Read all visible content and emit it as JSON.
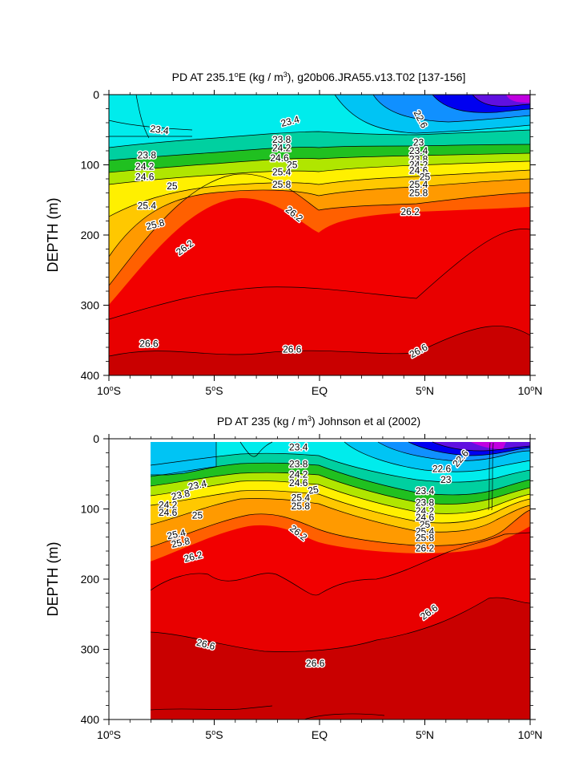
{
  "chart_data": [
    {
      "type": "heatmap",
      "title_main": "PD AT 235.1",
      "title_sup": "o",
      "title_rest": "E (kg / m",
      "title_unit_sup": "3",
      "title_tail": "), g20b06.JRA55.v13.T02 [137-156]",
      "ylabel": "DEPTH (m)",
      "xlim": [
        -10,
        10
      ],
      "ylim": [
        0,
        400
      ],
      "y_reversed": true,
      "x_ticks": [
        {
          "value": -10,
          "num": "10",
          "deg": "o",
          "hemi": "S"
        },
        {
          "value": -5,
          "num": "5",
          "deg": "o",
          "hemi": "S"
        },
        {
          "value": 0,
          "num": "EQ",
          "deg": "",
          "hemi": ""
        },
        {
          "value": 5,
          "num": "5",
          "deg": "o",
          "hemi": "N"
        },
        {
          "value": 10,
          "num": "10",
          "deg": "o",
          "hemi": "N"
        }
      ],
      "y_ticks": [
        "0",
        "100",
        "200",
        "300",
        "400"
      ],
      "y_tick_values": [
        0,
        100,
        200,
        300,
        400
      ],
      "data_start_lat": -10,
      "contour_levels": [
        22.6,
        23.0,
        23.4,
        23.8,
        24.2,
        24.6,
        25.0,
        25.4,
        25.8,
        26.2,
        26.6
      ],
      "contour_labels": [
        {
          "text": "23.4",
          "lat": -7.6,
          "depth": 50,
          "angle": 8
        },
        {
          "text": "23.4",
          "lat": -1.4,
          "depth": 38,
          "angle": -14
        },
        {
          "text": "22.6",
          "lat": 4.8,
          "depth": 35,
          "angle": 62
        },
        {
          "text": "23.8",
          "lat": -8.2,
          "depth": 86,
          "angle": 0
        },
        {
          "text": "23.8",
          "lat": -1.8,
          "depth": 64,
          "angle": 0
        },
        {
          "text": "24.2",
          "lat": -8.3,
          "depth": 102,
          "angle": 0
        },
        {
          "text": "24.2",
          "lat": -1.8,
          "depth": 76,
          "angle": 0
        },
        {
          "text": "24.6",
          "lat": -8.3,
          "depth": 117,
          "angle": 0
        },
        {
          "text": "24.6",
          "lat": -1.9,
          "depth": 90,
          "angle": 0
        },
        {
          "text": "25",
          "lat": -7.0,
          "depth": 130,
          "angle": 0
        },
        {
          "text": "25",
          "lat": -1.3,
          "depth": 100,
          "angle": 0
        },
        {
          "text": "25.4",
          "lat": -8.2,
          "depth": 158,
          "angle": 0
        },
        {
          "text": "25.4",
          "lat": -1.8,
          "depth": 110,
          "angle": 0
        },
        {
          "text": "25.8",
          "lat": -7.8,
          "depth": 185,
          "angle": -14
        },
        {
          "text": "25.8",
          "lat": -1.8,
          "depth": 128,
          "angle": 0
        },
        {
          "text": "26.2",
          "lat": -6.4,
          "depth": 218,
          "angle": -36
        },
        {
          "text": "26.2",
          "lat": -1.2,
          "depth": 170,
          "angle": 38
        },
        {
          "text": "23",
          "lat": 4.7,
          "depth": 68,
          "angle": 0
        },
        {
          "text": "23.4",
          "lat": 4.7,
          "depth": 80,
          "angle": 0
        },
        {
          "text": "23.8",
          "lat": 4.7,
          "depth": 92,
          "angle": 0
        },
        {
          "text": "24.2",
          "lat": 4.7,
          "depth": 100,
          "angle": 0
        },
        {
          "text": "24.6",
          "lat": 4.7,
          "depth": 108,
          "angle": 0
        },
        {
          "text": "25",
          "lat": 5.0,
          "depth": 117,
          "angle": 0
        },
        {
          "text": "25.4",
          "lat": 4.7,
          "depth": 128,
          "angle": 0
        },
        {
          "text": "25.8",
          "lat": 4.7,
          "depth": 140,
          "angle": 0
        },
        {
          "text": "26.2",
          "lat": 4.3,
          "depth": 167,
          "angle": 0
        },
        {
          "text": "26.6",
          "lat": -8.1,
          "depth": 355,
          "angle": 0
        },
        {
          "text": "26.6",
          "lat": -1.3,
          "depth": 363,
          "angle": 0
        },
        {
          "text": "26.6",
          "lat": 4.7,
          "depth": 365,
          "angle": -28
        }
      ]
    },
    {
      "type": "heatmap",
      "title_main": "PD AT 235 (kg / m",
      "title_sup": "3",
      "title_rest": ") Johnson et al (2002)",
      "title_unit_sup": "",
      "title_tail": "",
      "ylabel": "DEPTH (m)",
      "xlim": [
        -10,
        10
      ],
      "ylim": [
        0,
        400
      ],
      "y_reversed": true,
      "x_ticks": [
        {
          "value": -10,
          "num": "10",
          "deg": "o",
          "hemi": "S"
        },
        {
          "value": -5,
          "num": "5",
          "deg": "o",
          "hemi": "S"
        },
        {
          "value": 0,
          "num": "EQ",
          "deg": "",
          "hemi": ""
        },
        {
          "value": 5,
          "num": "5",
          "deg": "o",
          "hemi": "N"
        },
        {
          "value": 10,
          "num": "10",
          "deg": "o",
          "hemi": "N"
        }
      ],
      "y_ticks": [
        "0",
        "100",
        "200",
        "300",
        "400"
      ],
      "y_tick_values": [
        0,
        100,
        200,
        300,
        400
      ],
      "data_start_lat": -8,
      "contour_levels": [
        22.6,
        23.0,
        23.4,
        23.8,
        24.2,
        24.6,
        25.0,
        25.4,
        25.8,
        26.2,
        26.6
      ],
      "contour_labels": [
        {
          "text": "23.4",
          "lat": -1.0,
          "depth": 12,
          "angle": 0
        },
        {
          "text": "22.6",
          "lat": 6.7,
          "depth": 28,
          "angle": -50
        },
        {
          "text": "22.6",
          "lat": 5.8,
          "depth": 43,
          "angle": 0
        },
        {
          "text": "23",
          "lat": 6.0,
          "depth": 58,
          "angle": 0
        },
        {
          "text": "23.4",
          "lat": -5.8,
          "depth": 66,
          "angle": -12
        },
        {
          "text": "23.8",
          "lat": -6.6,
          "depth": 80,
          "angle": -12
        },
        {
          "text": "24.2",
          "lat": -7.2,
          "depth": 94,
          "angle": 0
        },
        {
          "text": "24.6",
          "lat": -7.2,
          "depth": 105,
          "angle": 0
        },
        {
          "text": "25",
          "lat": -5.8,
          "depth": 109,
          "angle": 0
        },
        {
          "text": "23.8",
          "lat": -1.0,
          "depth": 36,
          "angle": 0
        },
        {
          "text": "24.2",
          "lat": -1.0,
          "depth": 51,
          "angle": 0
        },
        {
          "text": "24.6",
          "lat": -1.0,
          "depth": 63,
          "angle": 0
        },
        {
          "text": "25",
          "lat": -0.3,
          "depth": 73,
          "angle": -10
        },
        {
          "text": "25.4",
          "lat": -0.9,
          "depth": 84,
          "angle": 0
        },
        {
          "text": "25.8",
          "lat": -0.9,
          "depth": 96,
          "angle": 0
        },
        {
          "text": "23.4",
          "lat": 5.0,
          "depth": 74,
          "angle": 0
        },
        {
          "text": "23.8",
          "lat": 5.0,
          "depth": 91,
          "angle": 0
        },
        {
          "text": "24.2",
          "lat": 5.0,
          "depth": 103,
          "angle": 0
        },
        {
          "text": "24.6",
          "lat": 5.0,
          "depth": 112,
          "angle": 0
        },
        {
          "text": "25",
          "lat": 5.0,
          "depth": 122,
          "angle": 0
        },
        {
          "text": "25.4",
          "lat": 5.0,
          "depth": 132,
          "angle": 0
        },
        {
          "text": "25.8",
          "lat": 5.0,
          "depth": 141,
          "angle": 0
        },
        {
          "text": "25.4",
          "lat": -6.8,
          "depth": 136,
          "angle": -12
        },
        {
          "text": "25.8",
          "lat": -6.6,
          "depth": 148,
          "angle": -12
        },
        {
          "text": "26.2",
          "lat": -6.0,
          "depth": 168,
          "angle": -14
        },
        {
          "text": "26.2",
          "lat": -1.0,
          "depth": 134,
          "angle": 38
        },
        {
          "text": "26.2",
          "lat": 5.0,
          "depth": 156,
          "angle": 0
        },
        {
          "text": "26.6",
          "lat": 5.2,
          "depth": 247,
          "angle": -36
        },
        {
          "text": "26.6",
          "lat": -5.4,
          "depth": 293,
          "angle": 14
        },
        {
          "text": "26.6",
          "lat": -0.2,
          "depth": 320,
          "angle": 0
        }
      ]
    }
  ]
}
